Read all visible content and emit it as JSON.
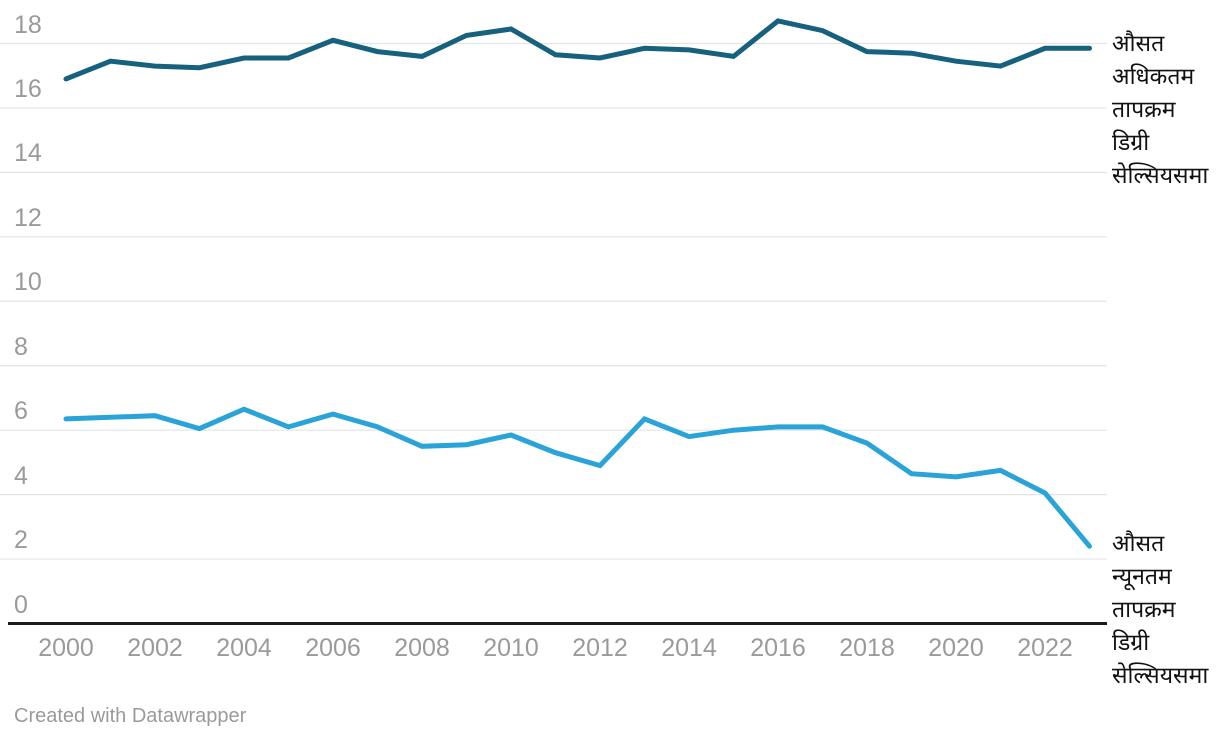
{
  "chart_data": {
    "type": "line",
    "x_label_note": "years shown on x axis",
    "x": [
      2000,
      2001,
      2002,
      2003,
      2004,
      2005,
      2006,
      2007,
      2008,
      2009,
      2010,
      2011,
      2012,
      2013,
      2014,
      2015,
      2016,
      2017,
      2018,
      2019,
      2020,
      2021,
      2022,
      2023
    ],
    "series": [
      {
        "name": "औसत अधिकतम तापक्रम डिग्री सेल्सियसमा",
        "label_lines": [
          "औसत",
          "अधिकतम",
          "तापक्रम",
          "डिग्री",
          "सेल्सियसमा"
        ],
        "color": "#15617e",
        "values": [
          16.9,
          17.45,
          17.3,
          17.25,
          17.55,
          17.55,
          18.1,
          17.75,
          17.6,
          18.25,
          18.45,
          17.65,
          17.55,
          17.85,
          17.8,
          17.6,
          18.7,
          18.4,
          17.75,
          17.7,
          17.45,
          17.3,
          17.85,
          17.85
        ]
      },
      {
        "name": "औसत न्यूनतम तापक्रम डिग्री सेल्सियसमा",
        "label_lines": [
          "औसत",
          "न्यूनतम",
          "तापक्रम",
          "डिग्री",
          "सेल्सियसमा"
        ],
        "color": "#2aa4d8",
        "values": [
          6.35,
          6.4,
          6.45,
          6.05,
          6.65,
          6.1,
          6.5,
          6.1,
          5.5,
          5.55,
          5.85,
          5.3,
          4.9,
          6.35,
          5.8,
          6.0,
          6.1,
          6.1,
          5.6,
          4.65,
          4.55,
          4.75,
          4.05,
          2.4
        ]
      }
    ],
    "x_ticks": [
      2000,
      2002,
      2004,
      2006,
      2008,
      2010,
      2012,
      2014,
      2016,
      2018,
      2020,
      2022
    ],
    "y_ticks": [
      0,
      2,
      4,
      6,
      8,
      10,
      12,
      14,
      16,
      18
    ],
    "ylim": [
      0,
      18
    ],
    "grid": true,
    "gridline_color": "#e4e4e4",
    "axis_line_color": "#1a1a1a",
    "tick_label_color": "#9a9a9a",
    "legend_position": "direct-labels-right"
  },
  "footer": {
    "attribution": "Created with Datawrapper"
  }
}
